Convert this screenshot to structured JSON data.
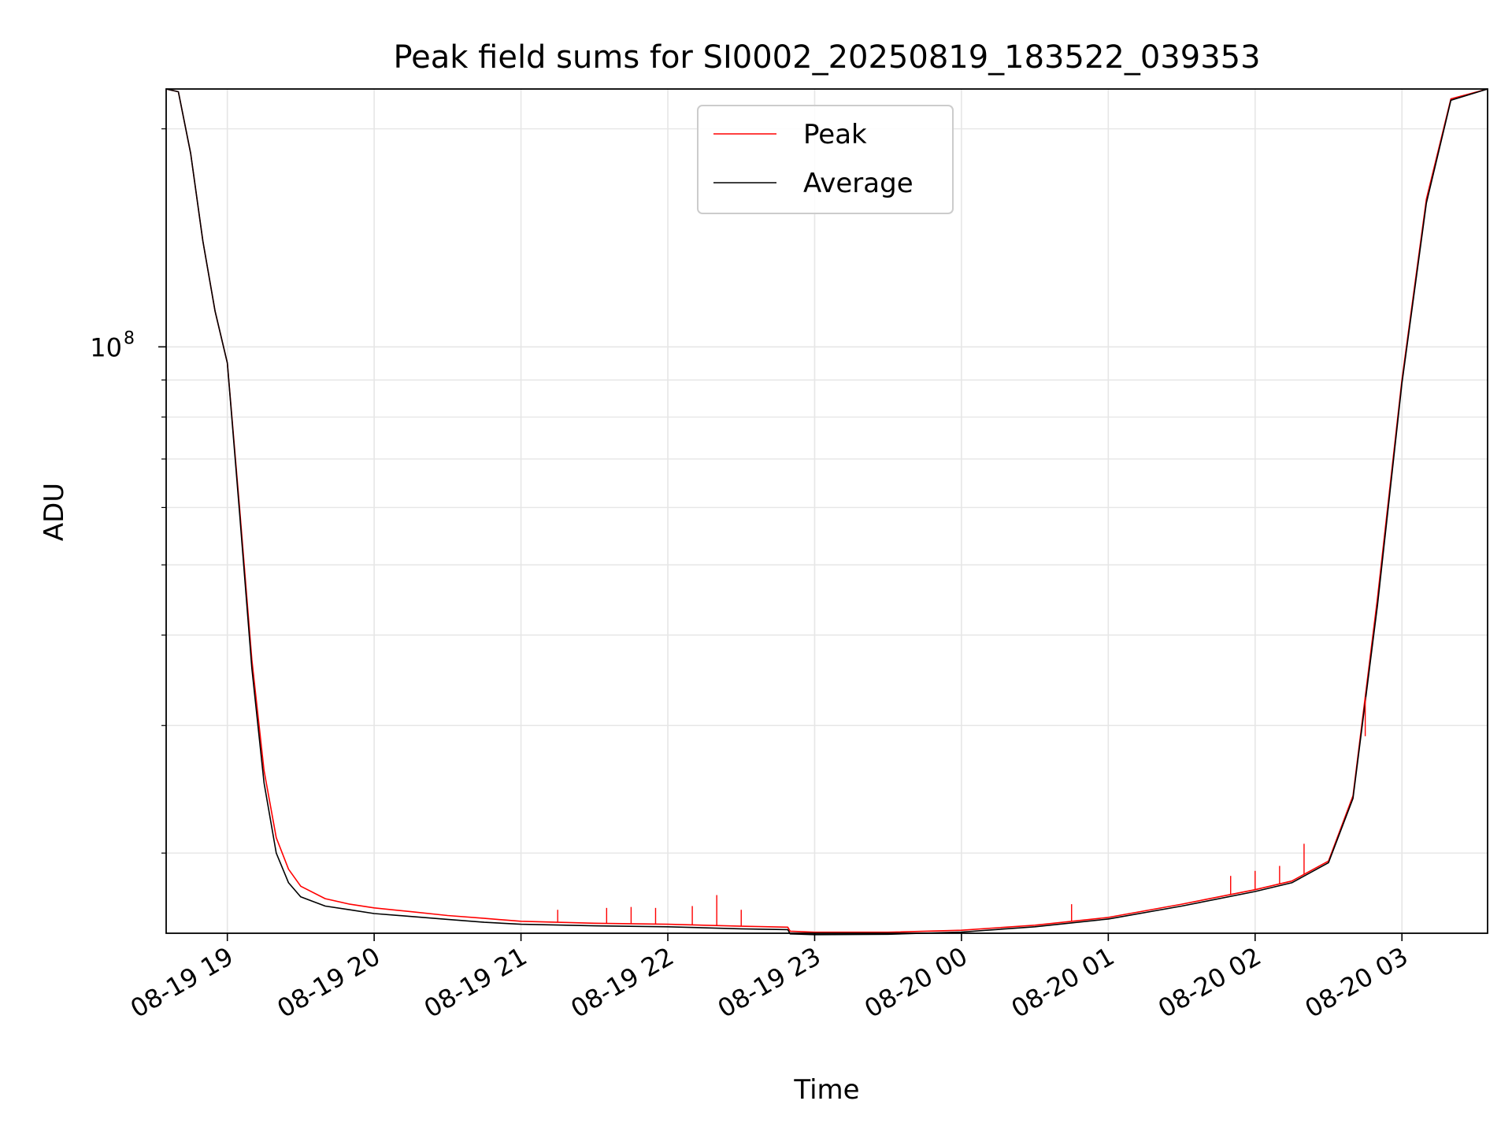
{
  "chart_data": {
    "type": "line",
    "title": "Peak field sums for SI0002_20250819_183522_039353",
    "xlabel": "Time",
    "ylabel": "ADU",
    "y_scale": "log",
    "ylim": [
      15500000,
      227000000
    ],
    "xlim": [
      "08-19 18:35",
      "08-20 03:35"
    ],
    "grid": true,
    "legend": {
      "placement": "upper center"
    },
    "x_tick_labels": [
      "08-19 19",
      "08-19 20",
      "08-19 21",
      "08-19 22",
      "08-19 23",
      "08-20 00",
      "08-20 01",
      "08-20 02",
      "08-20 03"
    ],
    "y_tick_labels": [
      {
        "value": 100000000,
        "base": "10",
        "exp": "8"
      }
    ],
    "series": [
      {
        "name": "Peak",
        "color": "#ff0000",
        "x": [
          "08-19 18:35",
          "08-19 18:40",
          "08-19 18:45",
          "08-19 18:50",
          "08-19 18:55",
          "08-19 19:00",
          "08-19 19:05",
          "08-19 19:10",
          "08-19 19:15",
          "08-19 19:20",
          "08-19 19:25",
          "08-19 19:30",
          "08-19 19:40",
          "08-19 19:50",
          "08-19 20:00",
          "08-19 20:15",
          "08-19 20:30",
          "08-19 20:45",
          "08-19 21:00",
          "08-19 21:30",
          "08-19 22:00",
          "08-19 22:30",
          "08-19 22:49",
          "08-19 22:50",
          "08-19 23:00",
          "08-19 23:30",
          "08-20 00:00",
          "08-20 00:30",
          "08-20 01:00",
          "08-20 01:30",
          "08-20 02:00",
          "08-20 02:15",
          "08-20 02:30",
          "08-20 02:40",
          "08-20 02:50",
          "08-20 03:00",
          "08-20 03:10",
          "08-20 03:20",
          "08-20 03:35"
        ],
        "values": [
          227000000,
          225000000,
          185000000,
          140000000,
          112000000,
          95000000,
          60000000,
          37000000,
          26000000,
          21000000,
          19000000,
          18000000,
          17300000,
          17000000,
          16800000,
          16600000,
          16400000,
          16250000,
          16100000,
          16000000,
          15950000,
          15850000,
          15800000,
          15600000,
          15550000,
          15550000,
          15650000,
          15900000,
          16300000,
          17000000,
          17800000,
          18300000,
          19500000,
          24000000,
          45000000,
          90000000,
          160000000,
          220000000,
          227000000
        ],
        "spikes": [
          {
            "x": "08-19 22:20",
            "value": 17500000
          },
          {
            "x": "08-19 22:10",
            "value": 16900000
          },
          {
            "x": "08-19 21:55",
            "value": 16800000
          },
          {
            "x": "08-19 22:30",
            "value": 16700000
          },
          {
            "x": "08-19 21:15",
            "value": 16700000
          },
          {
            "x": "08-19 21:35",
            "value": 16800000
          },
          {
            "x": "08-19 21:45",
            "value": 16850000
          },
          {
            "x": "08-20 00:45",
            "value": 17000000
          },
          {
            "x": "08-20 01:50",
            "value": 18600000
          },
          {
            "x": "08-20 02:00",
            "value": 18900000
          },
          {
            "x": "08-20 02:10",
            "value": 19200000
          },
          {
            "x": "08-20 02:20",
            "value": 20600000
          },
          {
            "x": "08-20 02:45",
            "value": 29000000
          }
        ]
      },
      {
        "name": "Average",
        "color": "#000000",
        "x": [
          "08-19 18:35",
          "08-19 18:40",
          "08-19 18:45",
          "08-19 18:50",
          "08-19 18:55",
          "08-19 19:00",
          "08-19 19:05",
          "08-19 19:10",
          "08-19 19:15",
          "08-19 19:20",
          "08-19 19:25",
          "08-19 19:30",
          "08-19 19:40",
          "08-19 19:50",
          "08-19 20:00",
          "08-19 20:15",
          "08-19 20:30",
          "08-19 20:45",
          "08-19 21:00",
          "08-19 21:30",
          "08-19 22:00",
          "08-19 22:30",
          "08-19 22:49",
          "08-19 22:50",
          "08-19 23:00",
          "08-19 23:30",
          "08-20 00:00",
          "08-20 00:30",
          "08-20 01:00",
          "08-20 01:30",
          "08-20 02:00",
          "08-20 02:15",
          "08-20 02:30",
          "08-20 02:40",
          "08-20 02:50",
          "08-20 03:00",
          "08-20 03:10",
          "08-20 03:20",
          "08-20 03:35"
        ],
        "values": [
          227000000,
          225000000,
          185000000,
          140000000,
          112000000,
          95000000,
          59000000,
          36000000,
          25000000,
          20000000,
          18200000,
          17400000,
          16900000,
          16700000,
          16500000,
          16350000,
          16200000,
          16050000,
          15950000,
          15870000,
          15820000,
          15720000,
          15680000,
          15470000,
          15430000,
          15450000,
          15560000,
          15820000,
          16220000,
          16900000,
          17700000,
          18200000,
          19400000,
          23800000,
          44000000,
          89000000,
          158000000,
          219000000,
          227000000
        ]
      }
    ]
  }
}
